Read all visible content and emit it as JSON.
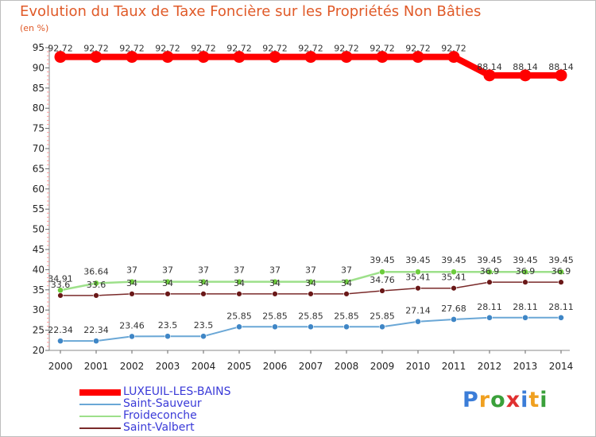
{
  "chart_data": {
    "type": "line",
    "title": "Evolution du Taux de Taxe Foncière sur les Propriétés Non Bâties",
    "subtitle": "(en %)",
    "xlabel": "",
    "ylabel": "",
    "x": [
      "2000",
      "2001",
      "2002",
      "2003",
      "2004",
      "2005",
      "2006",
      "2007",
      "2008",
      "2009",
      "2010",
      "2011",
      "2012",
      "2013",
      "2014"
    ],
    "ylim": [
      20,
      95
    ],
    "yticks": [
      "20",
      "25",
      "30",
      "35",
      "40",
      "45",
      "50",
      "55",
      "60",
      "65",
      "70",
      "75",
      "80",
      "85",
      "90",
      "95"
    ],
    "grid": false,
    "legend_position": "bottom-left",
    "series": [
      {
        "name": "LUXEUIL-LES-BAINS",
        "color": "#ff0000",
        "values": [
          92.72,
          92.72,
          92.72,
          92.72,
          92.72,
          92.72,
          92.72,
          92.72,
          92.72,
          92.72,
          92.72,
          92.72,
          88.14,
          88.14,
          88.14
        ],
        "labels": [
          "92.72",
          "92.72",
          "92.72",
          "92.72",
          "92.72",
          "92.72",
          "92.72",
          "92.72",
          "92.72",
          "92.72",
          "92.72",
          "92.72",
          "88.14",
          "88.14",
          "88.14"
        ]
      },
      {
        "name": "Saint-Sauveur",
        "color": "#6aa7d6",
        "marker_color": "#3f86c6",
        "values": [
          22.34,
          22.34,
          23.46,
          23.5,
          23.5,
          25.85,
          25.85,
          25.85,
          25.85,
          25.85,
          27.14,
          27.68,
          28.11,
          28.11,
          28.11
        ],
        "labels": [
          "22.34",
          "22.34",
          "23.46",
          "23.5",
          "23.5",
          "25.85",
          "25.85",
          "25.85",
          "25.85",
          "25.85",
          "27.14",
          "27.68",
          "28.11",
          "28.11",
          "28.11"
        ]
      },
      {
        "name": "Froideconche",
        "color": "#9de08a",
        "marker_color": "#6ccc3c",
        "values": [
          34.91,
          36.64,
          37,
          37,
          37,
          37,
          37,
          37,
          37,
          39.45,
          39.45,
          39.45,
          39.45,
          39.45,
          39.45
        ],
        "labels": [
          "34.91",
          "36.64",
          "37",
          "37",
          "37",
          "37",
          "37",
          "37",
          "37",
          "39.45",
          "39.45",
          "39.45",
          "39.45",
          "39.45",
          "39.45"
        ]
      },
      {
        "name": "Saint-Valbert",
        "color": "#7a2a2a",
        "marker_color": "#6a1818",
        "values": [
          33.6,
          33.6,
          34,
          34,
          34,
          34,
          34,
          34,
          34,
          34.76,
          35.41,
          35.41,
          36.9,
          36.9,
          36.9
        ],
        "labels": [
          "33.6",
          "33.6",
          "34",
          "34",
          "34",
          "34",
          "34",
          "34",
          "34",
          "34.76",
          "35.41",
          "35.41",
          "36.9",
          "36.9",
          "36.9"
        ]
      }
    ]
  },
  "legend_text_color": "#3a3ad8",
  "brand": {
    "letters": [
      "P",
      "r",
      "o",
      "x",
      "i",
      "t",
      "i"
    ],
    "colors": [
      "#3b7dd8",
      "#f0a020",
      "#3aa03a",
      "#e03030",
      "#3b7dd8",
      "#f0a020",
      "#3aa03a"
    ]
  }
}
